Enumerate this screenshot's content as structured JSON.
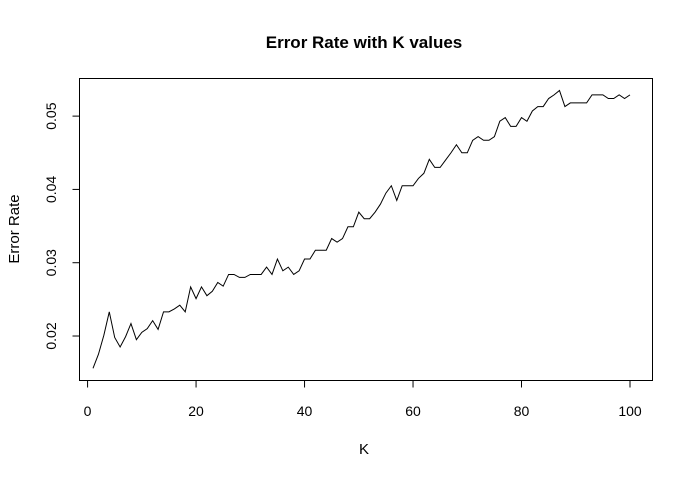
{
  "chart_data": {
    "type": "line",
    "title": "Error Rate with K values",
    "xlabel": "K",
    "ylabel": "Error Rate",
    "xlim": [
      1,
      100
    ],
    "ylim": [
      0.0155,
      0.0537
    ],
    "x_ticks": [
      0,
      20,
      40,
      60,
      80,
      100
    ],
    "y_ticks": [
      0.02,
      0.03,
      0.04,
      0.05
    ],
    "x_tick_labels": [
      "0",
      "20",
      "40",
      "60",
      "80",
      "100"
    ],
    "y_tick_labels": [
      "0.02",
      "0.03",
      "0.04",
      "0.05"
    ],
    "grid": false,
    "legend": "none",
    "line_color": "#000000",
    "series": [
      {
        "x": [
          1,
          2,
          3,
          4,
          5,
          6,
          7,
          8,
          9,
          10,
          11,
          12,
          13,
          14,
          15,
          16,
          17,
          18,
          19,
          20,
          21,
          22,
          23,
          24,
          25,
          26,
          27,
          28,
          29,
          30,
          31,
          32,
          33,
          34,
          35,
          36,
          37,
          38,
          39,
          40,
          41,
          42,
          43,
          44,
          45,
          46,
          47,
          48,
          49,
          50,
          51,
          52,
          53,
          54,
          55,
          56,
          57,
          58,
          59,
          60,
          61,
          62,
          63,
          64,
          65,
          66,
          67,
          68,
          69,
          70,
          71,
          72,
          73,
          74,
          75,
          76,
          77,
          78,
          79,
          80,
          81,
          82,
          83,
          84,
          85,
          86,
          87,
          88,
          89,
          90,
          91,
          92,
          93,
          94,
          95,
          96,
          97,
          98,
          99,
          100
        ],
        "values": [
          0.0156,
          0.0175,
          0.0201,
          0.0233,
          0.0198,
          0.0185,
          0.0199,
          0.0217,
          0.0195,
          0.0205,
          0.021,
          0.0221,
          0.0209,
          0.0233,
          0.0233,
          0.0237,
          0.0242,
          0.0233,
          0.0267,
          0.0251,
          0.0267,
          0.0255,
          0.0261,
          0.0273,
          0.0268,
          0.0284,
          0.0284,
          0.028,
          0.028,
          0.0284,
          0.0284,
          0.0284,
          0.0294,
          0.0284,
          0.0305,
          0.0289,
          0.0294,
          0.0284,
          0.0289,
          0.0305,
          0.0305,
          0.0317,
          0.0317,
          0.0317,
          0.0333,
          0.0328,
          0.0333,
          0.0349,
          0.0349,
          0.0369,
          0.036,
          0.036,
          0.0369,
          0.038,
          0.0395,
          0.0405,
          0.0385,
          0.0405,
          0.0405,
          0.0405,
          0.0415,
          0.0422,
          0.0441,
          0.043,
          0.043,
          0.044,
          0.045,
          0.0461,
          0.045,
          0.045,
          0.0467,
          0.0472,
          0.0467,
          0.0467,
          0.0472,
          0.0493,
          0.0498,
          0.0486,
          0.0486,
          0.0498,
          0.0493,
          0.0507,
          0.0513,
          0.0513,
          0.0524,
          0.0529,
          0.0535,
          0.0513,
          0.0518,
          0.0518,
          0.0518,
          0.0518,
          0.0529,
          0.0529,
          0.0529,
          0.0524,
          0.0524,
          0.0529,
          0.0524,
          0.0529
        ]
      }
    ]
  }
}
